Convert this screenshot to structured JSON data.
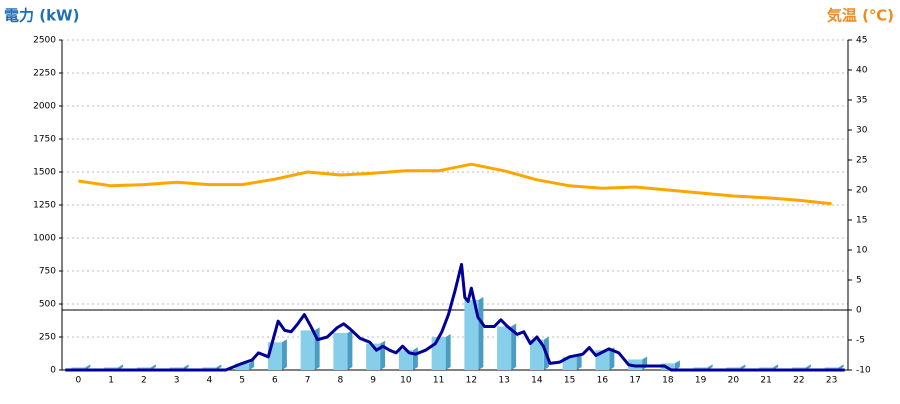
{
  "chart_data": {
    "type": "bar",
    "ylabel": "電力 (kW)",
    "y2label": "気温 (℃)",
    "categories": [
      "0",
      "1",
      "2",
      "3",
      "4",
      "5",
      "6",
      "7",
      "8",
      "9",
      "10",
      "11",
      "12",
      "13",
      "14",
      "15",
      "16",
      "17",
      "18",
      "19",
      "20",
      "21",
      "22",
      "23"
    ],
    "ylim": [
      0,
      2500
    ],
    "yticks": [
      0,
      250,
      500,
      750,
      1000,
      1250,
      1500,
      1750,
      2000,
      2250,
      2500
    ],
    "y2lim": [
      -10,
      45
    ],
    "y2ticks": [
      -10,
      -5,
      0,
      5,
      10,
      15,
      20,
      25,
      30,
      35,
      40,
      45
    ],
    "y2_reference_line": 0,
    "grid": true,
    "series": [
      {
        "type": "bar",
        "color": "#87ceeb",
        "side_color": "#4a9cc2",
        "values": [
          20,
          20,
          20,
          20,
          20,
          50,
          210,
          300,
          280,
          200,
          150,
          250,
          530,
          330,
          230,
          100,
          150,
          80,
          50,
          20,
          20,
          20,
          20,
          20
        ]
      },
      {
        "type": "line",
        "color": "#000099",
        "x": [
          -0.4,
          4.5,
          5.0,
          5.3,
          5.5,
          5.8,
          6.0,
          6.1,
          6.3,
          6.5,
          6.7,
          6.9,
          7.1,
          7.3,
          7.6,
          7.9,
          8.1,
          8.3,
          8.6,
          8.9,
          9.1,
          9.3,
          9.5,
          9.7,
          9.9,
          10.1,
          10.3,
          10.6,
          10.9,
          11.1,
          11.3,
          11.5,
          11.7,
          11.8,
          11.9,
          12.0,
          12.2,
          12.4,
          12.7,
          12.9,
          13.1,
          13.4,
          13.6,
          13.8,
          14.0,
          14.2,
          14.4,
          14.7,
          15.0,
          15.4,
          15.6,
          15.8,
          16.2,
          16.5,
          16.8,
          17.0,
          17.5,
          17.9,
          18.1,
          23.4
        ],
        "values": [
          0,
          0,
          50,
          75,
          130,
          100,
          280,
          370,
          300,
          290,
          350,
          420,
          330,
          230,
          250,
          320,
          350,
          310,
          240,
          210,
          150,
          180,
          150,
          130,
          180,
          130,
          120,
          150,
          200,
          290,
          420,
          600,
          800,
          550,
          520,
          620,
          400,
          330,
          330,
          380,
          330,
          270,
          290,
          200,
          250,
          180,
          50,
          60,
          100,
          120,
          170,
          110,
          160,
          130,
          40,
          30,
          30,
          30,
          0,
          0
        ]
      },
      {
        "type": "line",
        "axis": "y2",
        "color": "#ffa500",
        "values": [
          21.5,
          20.7,
          20.9,
          21.3,
          20.9,
          20.9,
          21.8,
          23,
          22.5,
          22.8,
          23.2,
          23.2,
          24.3,
          23.2,
          21.7,
          20.7,
          20.3,
          20.5,
          20,
          19.5,
          19,
          18.7,
          18.3,
          17.7
        ]
      }
    ]
  }
}
